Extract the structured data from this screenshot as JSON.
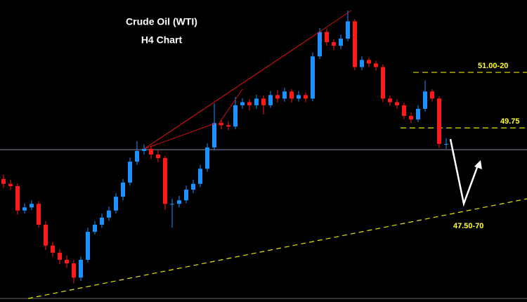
{
  "chart_data": {
    "type": "candlestick",
    "title": "Crude Oil (WTI)",
    "subtitle": "H4 Chart",
    "ylim": [
      45.83,
      52.63
    ],
    "up_color": "#1e90ff",
    "down_color": "#ff1a1a",
    "open": [
      48.6,
      48.49,
      48.44,
      47.89,
      47.96,
      48.04,
      47.57,
      47.1,
      46.94,
      46.78,
      46.7,
      46.38,
      46.78,
      47.41,
      47.57,
      47.73,
      47.89,
      48.2,
      48.52,
      48.99,
      49.23,
      49.28,
      49.15,
      49.07,
      48.04,
      48.04,
      48.12,
      48.36,
      48.49,
      48.83,
      49.31,
      49.86,
      49.81,
      49.78,
      50.26,
      50.33,
      50.26,
      50.41,
      50.26,
      50.49,
      50.41,
      50.57,
      50.41,
      50.49,
      50.41,
      51.36,
      51.91,
      51.68,
      51.6,
      51.76,
      52.15,
      51.12,
      51.28,
      51.2,
      51.12,
      50.41,
      50.33,
      50.26,
      50.02,
      49.94,
      50.18,
      50.57,
      50.41,
      49.39
    ],
    "high": [
      48.7,
      48.58,
      48.5,
      48.05,
      48.12,
      48.1,
      47.65,
      47.18,
      47.02,
      46.88,
      46.78,
      46.85,
      47.5,
      47.65,
      47.82,
      47.98,
      48.28,
      48.6,
      49.08,
      49.45,
      49.38,
      49.35,
      49.25,
      49.12,
      48.15,
      48.22,
      48.45,
      48.58,
      48.92,
      49.4,
      50.3,
      49.95,
      49.9,
      50.45,
      50.42,
      50.4,
      50.5,
      50.48,
      50.58,
      50.6,
      50.66,
      50.62,
      50.58,
      50.55,
      51.45,
      52.0,
      51.98,
      51.75,
      51.85,
      52.39,
      52.2,
      51.36,
      51.34,
      51.26,
      51.18,
      50.48,
      50.4,
      50.32,
      50.1,
      50.26,
      50.82,
      50.62,
      50.46,
      49.52
    ],
    "low": [
      48.4,
      48.35,
      47.8,
      47.82,
      47.9,
      47.5,
      47.0,
      46.85,
      46.68,
      46.6,
      46.25,
      46.3,
      46.72,
      47.35,
      47.5,
      47.66,
      47.82,
      48.12,
      48.45,
      48.92,
      49.15,
      49.05,
      48.98,
      47.9,
      47.5,
      47.96,
      48.05,
      48.28,
      48.42,
      48.76,
      49.25,
      49.72,
      49.7,
      49.72,
      50.18,
      50.15,
      50.18,
      50.05,
      50.2,
      50.32,
      50.34,
      50.32,
      50.34,
      50.33,
      50.35,
      51.3,
      51.6,
      51.5,
      51.52,
      51.7,
      51.05,
      51.05,
      51.12,
      51.04,
      50.33,
      50.25,
      50.18,
      49.95,
      49.86,
      49.88,
      50.12,
      50.34,
      49.3,
      49.28
    ],
    "close": [
      48.49,
      48.44,
      47.89,
      47.96,
      48.04,
      47.57,
      47.1,
      46.94,
      46.78,
      46.7,
      46.38,
      46.78,
      47.41,
      47.57,
      47.73,
      47.89,
      48.2,
      48.52,
      48.99,
      49.23,
      49.28,
      49.15,
      49.07,
      48.04,
      48.04,
      48.12,
      48.36,
      48.49,
      48.83,
      49.31,
      49.86,
      49.81,
      49.78,
      50.26,
      50.33,
      50.26,
      50.41,
      50.26,
      50.49,
      50.41,
      50.57,
      50.41,
      50.49,
      50.41,
      51.36,
      51.91,
      51.68,
      51.6,
      51.76,
      52.15,
      51.12,
      51.28,
      51.2,
      51.12,
      50.41,
      50.33,
      50.26,
      50.02,
      49.94,
      50.18,
      50.57,
      50.41,
      49.39,
      49.39
    ],
    "price_line": 49.26,
    "levels": [
      {
        "value": 51.0,
        "label": "51.00-20"
      },
      {
        "value": 49.75,
        "label": "49.75"
      }
    ],
    "trendline_label": "47.50-70"
  }
}
